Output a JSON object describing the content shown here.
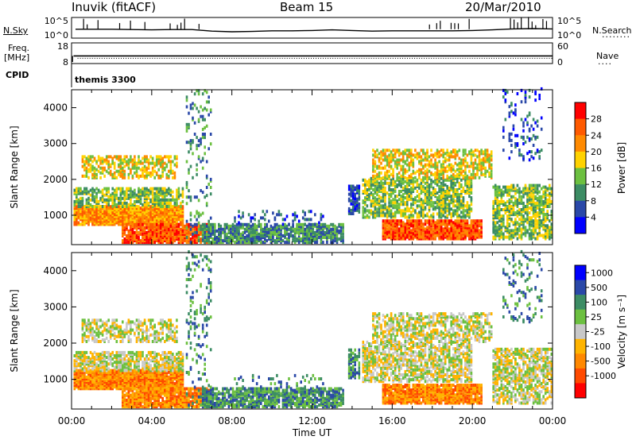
{
  "header": {
    "station": "Inuvik (fitACF)",
    "beam": "Beam 15",
    "date": "20/Mar/2010"
  },
  "panel_labels": {
    "nsky": "N.Sky",
    "nsearch": "N.Search",
    "freq_line1": "Freq.",
    "freq_line2": "[MHz]",
    "nave": "Nave",
    "cpid": "CPID",
    "cpid_value": "themis 3300"
  },
  "colors": {
    "power_scale": [
      "#0000ff",
      "#2a48a8",
      "#3c8c64",
      "#6cc040",
      "#ffd200",
      "#ff8a00",
      "#ff5a00",
      "#ff0000"
    ],
    "velocity_scale": [
      "#ff0000",
      "#ff4a00",
      "#ff8800",
      "#ffb400",
      "#c8c8c8",
      "#6cc040",
      "#3c8c64",
      "#2a48a8",
      "#0000ff"
    ]
  },
  "chart_data": [
    {
      "type": "line",
      "title": "",
      "xlabel": "",
      "left_ylabel": "N.Sky",
      "right_ylabel": "N.Search",
      "left_ticks": [
        "10^5",
        "10^0"
      ],
      "right_ticks": [
        "10^5",
        "10^0"
      ],
      "xlim": [
        0,
        24
      ],
      "series": [
        {
          "x": [
            0.2,
            1,
            2,
            3,
            4,
            5,
            6,
            7,
            8,
            9,
            10,
            11,
            12,
            13,
            14,
            15,
            16,
            17,
            18,
            19,
            20,
            21,
            22,
            23,
            24
          ],
          "values": [
            1.8,
            1.8,
            1.8,
            1.7,
            1.6,
            1.7,
            1.7,
            1.2,
            1.0,
            1.1,
            1.3,
            1.3,
            1.4,
            1.6,
            1.4,
            1.2,
            1.3,
            1.3,
            1.3,
            1.3,
            1.4,
            1.6,
            1.9,
            2.0,
            1.9
          ]
        }
      ]
    },
    {
      "type": "line",
      "title": "",
      "xlabel": "",
      "left_ylabel": "Freq. [MHz]",
      "right_ylabel": "Nave",
      "left_ticks": [
        18,
        8
      ],
      "right_ticks": [
        60,
        0
      ],
      "xlim": [
        0,
        24
      ],
      "series": [
        {
          "x": [
            0.1,
            24
          ],
          "values": [
            11.8,
            11.8
          ]
        }
      ]
    },
    {
      "type": "heatmap",
      "title": "",
      "xlabel": "",
      "ylabel": "Slant Range [km]",
      "colorbar_label": "Power [dB]",
      "colorbar_ticks": [
        4,
        8,
        12,
        16,
        20,
        24,
        28
      ],
      "xlim": [
        0,
        24
      ],
      "ylim": [
        180,
        4500
      ],
      "yticks": [
        1000,
        2000,
        3000,
        4000
      ]
    },
    {
      "type": "heatmap",
      "title": "",
      "xlabel": "Time UT",
      "ylabel": "Slant Range [km]",
      "colorbar_label": "Velocity [m s⁻¹]",
      "colorbar_ticks": [
        1000,
        500,
        100,
        25,
        -25,
        -100,
        -500,
        -1000
      ],
      "xlim": [
        0,
        24
      ],
      "ylim": [
        180,
        4500
      ],
      "yticks": [
        1000,
        2000,
        3000,
        4000
      ],
      "xticks": [
        "00:00",
        "04:00",
        "08:00",
        "12:00",
        "16:00",
        "20:00",
        "00:00"
      ]
    }
  ]
}
